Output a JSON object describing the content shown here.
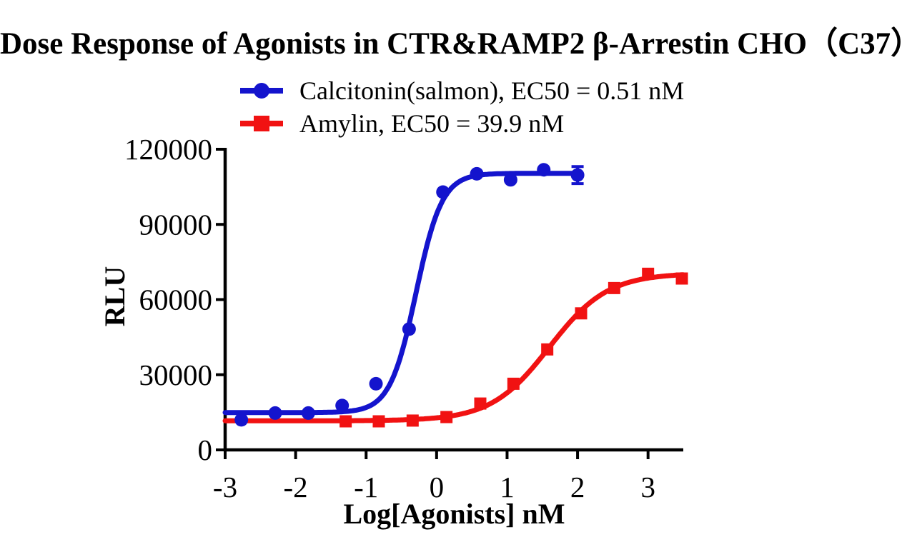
{
  "title": "Dose Response of Agonists in CTR&RAMP2 β-Arrestin CHO（C37）",
  "axes": {
    "x_title": "Log[Agonists] nM",
    "y_title": "RLU",
    "xtick_labels": [
      "-3",
      "-2",
      "-1",
      "0",
      "1",
      "2",
      "3"
    ],
    "ytick_labels": [
      "0",
      "30000",
      "60000",
      "90000",
      "120000"
    ]
  },
  "colors": {
    "calcitonin_blue": "#1414cd",
    "amylin_red": "#f11212",
    "axis_black": "#000000",
    "background": "#ffffff"
  },
  "chart_data": {
    "type": "scatter",
    "subtype": "dose-response-sigmoid-fit",
    "title": "Dose Response of Agonists in CTR&RAMP2 β-Arrestin CHO（C37）",
    "xlabel": "Log[Agonists] nM",
    "ylabel": "RLU",
    "xlim": [
      -3,
      3.5
    ],
    "ylim": [
      0,
      120000
    ],
    "xticks": [
      -3,
      -2,
      -1,
      0,
      1,
      2,
      3
    ],
    "yticks": [
      0,
      30000,
      60000,
      90000,
      120000
    ],
    "grid": false,
    "legend_position": "top",
    "series": [
      {
        "id": "calcitonin",
        "name": "Calcitonin(salmon), EC50 = 0.51 nM",
        "ec50_nM": 0.51,
        "marker": "circle",
        "color": "#1414cd",
        "x": [
          -2.77,
          -2.29,
          -1.82,
          -1.34,
          -0.86,
          -0.39,
          0.09,
          0.57,
          1.05,
          1.52,
          2.0
        ],
        "y": [
          12000,
          14700,
          14700,
          17700,
          26400,
          48200,
          102900,
          110200,
          107800,
          111800,
          109700
        ],
        "error_y": [
          null,
          null,
          null,
          null,
          null,
          null,
          null,
          null,
          null,
          null,
          3400
        ],
        "fit": {
          "bottom": 14900,
          "top": 110400,
          "log_ec50": -0.292,
          "hill": 2.35,
          "x_start": -3,
          "x_end": 2.04
        }
      },
      {
        "id": "amylin",
        "name": "Amylin, EC50 = 39.9 nM",
        "ec50_nM": 39.9,
        "marker": "square",
        "color": "#f11212",
        "x": [
          -1.29,
          -0.82,
          -0.34,
          0.14,
          0.62,
          1.09,
          1.57,
          2.05,
          2.52,
          3.0,
          3.48
        ],
        "y": [
          11400,
          11400,
          11700,
          13100,
          18500,
          26400,
          40100,
          54500,
          64600,
          70300,
          68400
        ],
        "error_y": [
          null,
          null,
          null,
          null,
          null,
          null,
          null,
          null,
          null,
          null,
          null
        ],
        "fit": {
          "bottom": 11600,
          "top": 70500,
          "log_ec50": 1.601,
          "hill": 1.05,
          "x_start": -3,
          "x_end": 3.5
        }
      }
    ]
  }
}
